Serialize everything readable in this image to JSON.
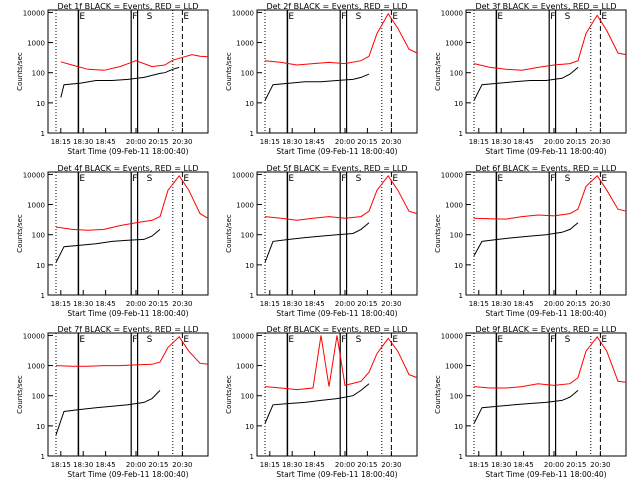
{
  "figure": {
    "xlabel": "Start Time (09-Feb-11 18:00:40)",
    "ylabel": "Counts/sec",
    "y_ticks": [
      "1",
      "10",
      "100",
      "1000",
      "10000"
    ],
    "x_ticks": [
      "18:15",
      "18:30",
      "18:45",
      "20:00",
      "20:15",
      "20:30"
    ],
    "flag_letters": [
      "E",
      "F",
      "S",
      "E"
    ],
    "colors": {
      "events": "#000000",
      "lld": "#ff0000"
    }
  },
  "chart_data": [
    {
      "type": "line",
      "title": "Det 1f BLACK = Events, RED = LLD",
      "ylim": [
        1,
        12000
      ],
      "yscale": "log",
      "series": [
        {
          "name": "BLACK = Events",
          "color": "#000000",
          "x": [
            0.08,
            0.1,
            0.2,
            0.3,
            0.4,
            0.5,
            0.6,
            0.7,
            0.73,
            0.78,
            0.82
          ],
          "values": [
            15,
            40,
            45,
            55,
            55,
            60,
            70,
            95,
            100,
            130,
            150
          ]
        },
        {
          "name": "RED = LLD",
          "color": "#ff0000",
          "x": [
            0.08,
            0.15,
            0.25,
            0.35,
            0.45,
            0.55,
            0.65,
            0.73,
            0.78,
            0.82,
            0.9,
            0.95,
            1.0
          ],
          "values": [
            230,
            180,
            130,
            120,
            160,
            250,
            160,
            180,
            260,
            300,
            400,
            350,
            340
          ]
        }
      ]
    },
    {
      "type": "line",
      "title": "Det 2f BLACK = Events, RED = LLD",
      "ylim": [
        1,
        12000
      ],
      "yscale": "log",
      "series": [
        {
          "name": "BLACK = Events",
          "color": "#000000",
          "x": [
            0.05,
            0.1,
            0.2,
            0.3,
            0.4,
            0.5,
            0.6,
            0.65,
            0.7
          ],
          "values": [
            12,
            40,
            45,
            50,
            50,
            55,
            60,
            70,
            90
          ]
        },
        {
          "name": "RED = LLD",
          "color": "#ff0000",
          "x": [
            0.05,
            0.15,
            0.25,
            0.35,
            0.45,
            0.55,
            0.65,
            0.7,
            0.75,
            0.82,
            0.88,
            0.95,
            1.0
          ],
          "values": [
            250,
            220,
            180,
            200,
            220,
            200,
            250,
            350,
            2000,
            9000,
            3000,
            600,
            450
          ]
        }
      ]
    },
    {
      "type": "line",
      "title": "Det 3f BLACK = Events, RED = LLD",
      "ylim": [
        1,
        12000
      ],
      "yscale": "log",
      "series": [
        {
          "name": "BLACK = Events",
          "color": "#000000",
          "x": [
            0.05,
            0.1,
            0.2,
            0.3,
            0.4,
            0.5,
            0.6,
            0.65,
            0.7
          ],
          "values": [
            12,
            40,
            45,
            50,
            55,
            55,
            65,
            90,
            150
          ]
        },
        {
          "name": "RED = LLD",
          "color": "#ff0000",
          "x": [
            0.05,
            0.15,
            0.25,
            0.35,
            0.45,
            0.55,
            0.65,
            0.7,
            0.75,
            0.82,
            0.88,
            0.95,
            1.0
          ],
          "values": [
            200,
            150,
            130,
            120,
            150,
            180,
            200,
            250,
            2000,
            8000,
            2500,
            450,
            400
          ]
        }
      ]
    },
    {
      "type": "line",
      "title": "Det 4f BLACK = Events, RED = LLD",
      "ylim": [
        1,
        12000
      ],
      "yscale": "log",
      "series": [
        {
          "name": "BLACK = Events",
          "color": "#000000",
          "x": [
            0.05,
            0.1,
            0.2,
            0.3,
            0.4,
            0.5,
            0.6,
            0.65,
            0.7
          ],
          "values": [
            12,
            40,
            45,
            50,
            60,
            65,
            70,
            90,
            150
          ]
        },
        {
          "name": "RED = LLD",
          "color": "#ff0000",
          "x": [
            0.05,
            0.15,
            0.25,
            0.35,
            0.45,
            0.55,
            0.65,
            0.7,
            0.75,
            0.82,
            0.88,
            0.95,
            1.0
          ],
          "values": [
            180,
            150,
            140,
            150,
            200,
            250,
            300,
            400,
            3000,
            9000,
            3000,
            500,
            350
          ]
        }
      ]
    },
    {
      "type": "line",
      "title": "Det 5f BLACK = Events, RED = LLD",
      "ylim": [
        1,
        12000
      ],
      "yscale": "log",
      "series": [
        {
          "name": "BLACK = Events",
          "color": "#000000",
          "x": [
            0.05,
            0.1,
            0.2,
            0.3,
            0.4,
            0.5,
            0.6,
            0.65,
            0.7
          ],
          "values": [
            12,
            60,
            70,
            80,
            90,
            100,
            110,
            150,
            250
          ]
        },
        {
          "name": "RED = LLD",
          "color": "#ff0000",
          "x": [
            0.05,
            0.15,
            0.25,
            0.35,
            0.45,
            0.55,
            0.65,
            0.7,
            0.75,
            0.82,
            0.88,
            0.95,
            1.0
          ],
          "values": [
            400,
            350,
            300,
            350,
            400,
            350,
            400,
            600,
            3000,
            9000,
            3000,
            600,
            500
          ]
        }
      ]
    },
    {
      "type": "line",
      "title": "Det 6f BLACK = Events, RED = LLD",
      "ylim": [
        1,
        12000
      ],
      "yscale": "log",
      "series": [
        {
          "name": "BLACK = Events",
          "color": "#000000",
          "x": [
            0.05,
            0.1,
            0.2,
            0.3,
            0.4,
            0.5,
            0.6,
            0.65,
            0.7
          ],
          "values": [
            20,
            60,
            70,
            80,
            90,
            100,
            120,
            150,
            250
          ]
        },
        {
          "name": "RED = LLD",
          "color": "#ff0000",
          "x": [
            0.05,
            0.15,
            0.25,
            0.35,
            0.45,
            0.55,
            0.65,
            0.7,
            0.75,
            0.82,
            0.88,
            0.95,
            1.0
          ],
          "values": [
            350,
            340,
            330,
            400,
            450,
            420,
            500,
            700,
            4000,
            9000,
            3000,
            700,
            600
          ]
        }
      ]
    },
    {
      "type": "line",
      "title": "Det 7f BLACK = Events, RED = LLD",
      "ylim": [
        1,
        12000
      ],
      "yscale": "log",
      "series": [
        {
          "name": "BLACK = Events",
          "color": "#000000",
          "x": [
            0.05,
            0.1,
            0.2,
            0.3,
            0.4,
            0.5,
            0.6,
            0.65,
            0.7
          ],
          "values": [
            5,
            30,
            35,
            40,
            45,
            50,
            60,
            80,
            150
          ]
        },
        {
          "name": "RED = LLD",
          "color": "#ff0000",
          "x": [
            0.05,
            0.15,
            0.25,
            0.35,
            0.45,
            0.55,
            0.65,
            0.7,
            0.75,
            0.82,
            0.88,
            0.95,
            1.0
          ],
          "values": [
            1000,
            950,
            950,
            1000,
            1000,
            1050,
            1100,
            1300,
            4000,
            9000,
            3000,
            1200,
            1100
          ]
        }
      ]
    },
    {
      "type": "line",
      "title": "Det 8f BLACK = Events, RED = LLD",
      "ylim": [
        1,
        12000
      ],
      "yscale": "log",
      "series": [
        {
          "name": "BLACK = Events",
          "color": "#000000",
          "x": [
            0.05,
            0.1,
            0.2,
            0.3,
            0.4,
            0.5,
            0.6,
            0.65,
            0.7
          ],
          "values": [
            12,
            50,
            55,
            60,
            70,
            80,
            100,
            150,
            250
          ]
        },
        {
          "name": "RED = LLD",
          "color": "#ff0000",
          "x": [
            0.05,
            0.15,
            0.25,
            0.35,
            0.4,
            0.45,
            0.5,
            0.55,
            0.65,
            0.7,
            0.75,
            0.82,
            0.88,
            0.95,
            1.0
          ],
          "values": [
            200,
            180,
            160,
            180,
            10000,
            200,
            10000,
            220,
            300,
            600,
            2500,
            8000,
            3000,
            500,
            400
          ]
        }
      ]
    },
    {
      "type": "line",
      "title": "Det 9f BLACK = Events, RED = LLD",
      "ylim": [
        1,
        12000
      ],
      "yscale": "log",
      "series": [
        {
          "name": "BLACK = Events",
          "color": "#000000",
          "x": [
            0.05,
            0.1,
            0.2,
            0.3,
            0.4,
            0.5,
            0.6,
            0.65,
            0.7
          ],
          "values": [
            12,
            40,
            45,
            50,
            55,
            60,
            70,
            90,
            150
          ]
        },
        {
          "name": "RED = LLD",
          "color": "#ff0000",
          "x": [
            0.05,
            0.15,
            0.25,
            0.35,
            0.45,
            0.55,
            0.65,
            0.7,
            0.75,
            0.82,
            0.88,
            0.95,
            1.0
          ],
          "values": [
            200,
            180,
            180,
            200,
            250,
            220,
            250,
            400,
            3000,
            9000,
            3000,
            300,
            280
          ]
        }
      ]
    }
  ]
}
